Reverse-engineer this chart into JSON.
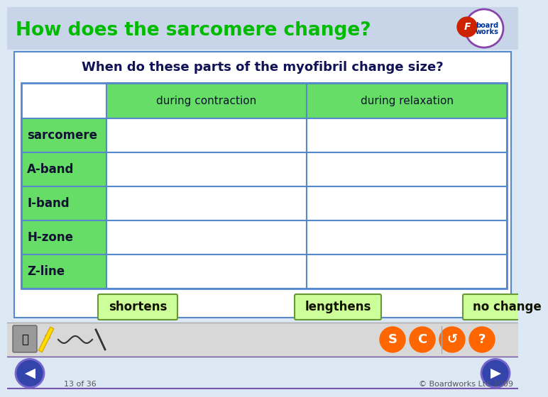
{
  "title": "How does the sarcomere change?",
  "subtitle": "When do these parts of the myofibril change size?",
  "title_color": "#00bb00",
  "title_bg_top": "#c8d8f0",
  "title_bg_bottom": "#e8eef8",
  "main_bg": "#ffffff",
  "outer_bg": "#dde8f5",
  "header_green": "#66dd66",
  "row_label_green": "#66dd66",
  "table_border": "#5588cc",
  "content_border": "#5588cc",
  "col_headers": [
    "during contraction",
    "during relaxation"
  ],
  "row_labels": [
    "sarcomere",
    "A-band",
    "I-band",
    "H-zone",
    "Z-line"
  ],
  "bottom_buttons": [
    "shortens",
    "lengthens",
    "no change"
  ],
  "btn_bg": "#ccff99",
  "btn_border": "#669933",
  "toolbar_bg": "#d8d8d8",
  "toolbar_border": "#bbbbbb",
  "orange_circles": [
    "S",
    "C",
    "↺",
    "?"
  ],
  "orange_color": "#ff6600",
  "nav_bg": "#3344aa",
  "nav_border": "#7766cc",
  "footer_left": "13 of 36",
  "footer_right": "© Boardworks Ltd 2009",
  "footer_color": "#555555",
  "bottom_bg": "#dde8f5"
}
